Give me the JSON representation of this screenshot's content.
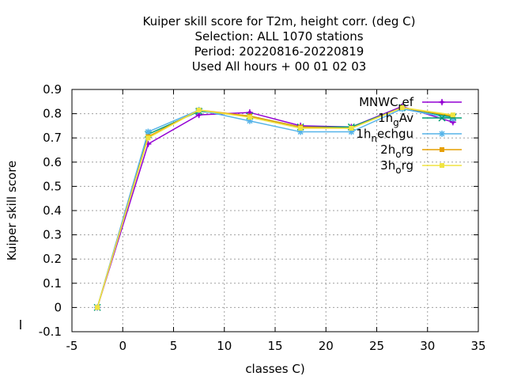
{
  "chart_data": {
    "type": "line",
    "title_lines": [
      "Kuiper skill score  for T2m, height corr. (deg C)",
      "Selection: ALL   1070 stations",
      "Period: 20220816-20220819",
      "Used  All hours  + 00 01 02 03"
    ],
    "xlabel": "classes C)",
    "ylabel": "Kuiper skill score",
    "xlim": [
      -5,
      35
    ],
    "ylim": [
      -0.1,
      0.9
    ],
    "xticks": [
      -5,
      0,
      5,
      10,
      15,
      20,
      25,
      30,
      35
    ],
    "yticks": [
      -0.1,
      0,
      0.1,
      0.2,
      0.3,
      0.4,
      0.5,
      0.6,
      0.7,
      0.8,
      0.9
    ],
    "xtick_labels": [
      "-5",
      "0",
      "5",
      "10",
      "15",
      "20",
      "25",
      "30",
      "35"
    ],
    "ytick_labels": [
      "-0.1",
      "0",
      "0.1",
      "0.2",
      "0.3",
      "0.4",
      "0.5",
      "0.6",
      "0.7",
      "0.8",
      "0.9"
    ],
    "grid": true,
    "legend_position": "top-right",
    "x": [
      -2.5,
      2.5,
      7.5,
      12.5,
      17.5,
      22.5,
      27.5,
      32.5
    ],
    "series": [
      {
        "name": "MNWC_ref",
        "legend_main": "MNWC",
        "legend_sub": "r",
        "legend_rest": "ef",
        "color": "#9400d3",
        "marker": "plus",
        "values": [
          0.0,
          0.675,
          0.795,
          0.805,
          0.75,
          0.745,
          0.83,
          0.765
        ]
      },
      {
        "name": "1h_gAv",
        "legend_main": "1h",
        "legend_sub": "g",
        "legend_rest": "Av",
        "color": "#009e73",
        "marker": "x",
        "values": [
          0.0,
          0.715,
          0.81,
          0.79,
          0.745,
          0.745,
          0.825,
          0.785
        ]
      },
      {
        "name": "1h_nechgu",
        "legend_main": "1h",
        "legend_sub": "n",
        "legend_rest": "echgu",
        "color": "#56b4e9",
        "marker": "star",
        "values": [
          0.0,
          0.725,
          0.815,
          0.77,
          0.725,
          0.725,
          0.82,
          0.78
        ]
      },
      {
        "name": "2h_org",
        "legend_main": "2h",
        "legend_sub": "o",
        "legend_rest": "rg",
        "color": "#e69f00",
        "marker": "square",
        "values": [
          0.0,
          0.705,
          0.815,
          0.79,
          0.745,
          0.74,
          0.825,
          0.79
        ]
      },
      {
        "name": "3h_org",
        "legend_main": "3h",
        "legend_sub": "o",
        "legend_rest": "rg",
        "color": "#f0e442",
        "marker": "square",
        "values": [
          0.0,
          0.7,
          0.815,
          0.785,
          0.74,
          0.74,
          0.825,
          0.795
        ]
      }
    ]
  }
}
